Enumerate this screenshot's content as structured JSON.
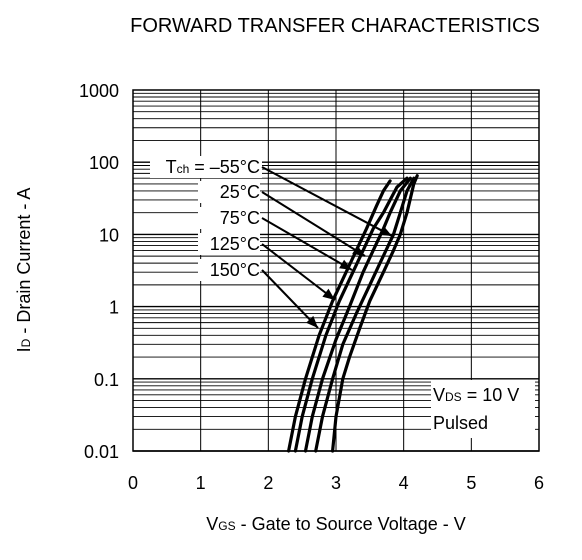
{
  "chart_data": {
    "type": "line",
    "title": "FORWARD TRANSFER CHARACTERISTICS",
    "xlabel": {
      "main": "V",
      "sub": "GS",
      "rest": " - Gate to Source Voltage - V"
    },
    "ylabel": {
      "main": "I",
      "sub": "D",
      "rest": " - Drain Current - A"
    },
    "xlim": [
      0,
      6
    ],
    "ylim": [
      0.01,
      1000
    ],
    "y_scale": "log",
    "grid": true,
    "x_ticks": [
      "0",
      "1",
      "2",
      "3",
      "4",
      "5",
      "6"
    ],
    "y_ticks": [
      "0.01",
      "0.1",
      "1",
      "10",
      "100",
      "1000"
    ],
    "annotation": {
      "line1": {
        "main": "V",
        "sub": "DS",
        "rest": " = 10 V"
      },
      "line2": "Pulsed"
    },
    "legend_header": {
      "main": "T",
      "sub": "ch",
      "rest": " = –55°C"
    },
    "series": [
      {
        "name": "–55°C",
        "x": [
          2.95,
          3.0,
          3.1,
          3.2,
          3.35,
          3.5,
          3.7,
          3.85,
          3.95,
          4.05,
          4.15,
          4.2
        ],
        "y": [
          0.01,
          0.03,
          0.1,
          0.2,
          0.5,
          1.2,
          3,
          6,
          10,
          20,
          50,
          65
        ]
      },
      {
        "name": "25°C",
        "x": [
          2.7,
          2.8,
          2.95,
          3.1,
          3.3,
          3.5,
          3.65,
          3.85,
          3.95,
          4.05,
          4.15
        ],
        "y": [
          0.01,
          0.03,
          0.1,
          0.3,
          0.8,
          2,
          4,
          10,
          20,
          40,
          60
        ]
      },
      {
        "name": "75°C",
        "x": [
          2.55,
          2.65,
          2.8,
          3.0,
          3.2,
          3.4,
          3.55,
          3.7,
          3.8,
          3.95,
          4.1
        ],
        "y": [
          0.01,
          0.03,
          0.1,
          0.35,
          1,
          3,
          6,
          12,
          20,
          40,
          60
        ]
      },
      {
        "name": "125°C",
        "x": [
          2.4,
          2.5,
          2.65,
          2.85,
          3.05,
          3.25,
          3.4,
          3.55,
          3.7,
          3.8,
          3.9,
          4.05
        ],
        "y": [
          0.01,
          0.03,
          0.1,
          0.4,
          1.2,
          3,
          6,
          12,
          20,
          30,
          45,
          60
        ]
      },
      {
        "name": "150°C",
        "x": [
          2.3,
          2.4,
          2.55,
          2.75,
          2.95,
          3.15,
          3.3,
          3.45,
          3.6,
          3.7,
          3.8
        ],
        "y": [
          0.01,
          0.03,
          0.1,
          0.4,
          1.2,
          3,
          6,
          12,
          25,
          40,
          55
        ]
      }
    ],
    "label_texts": [
      "–55°C",
      "25°C",
      "75°C",
      "125°C",
      "150°C"
    ],
    "colors": {
      "line": "#000000",
      "grid": "#000000",
      "background": "#ffffff"
    }
  }
}
